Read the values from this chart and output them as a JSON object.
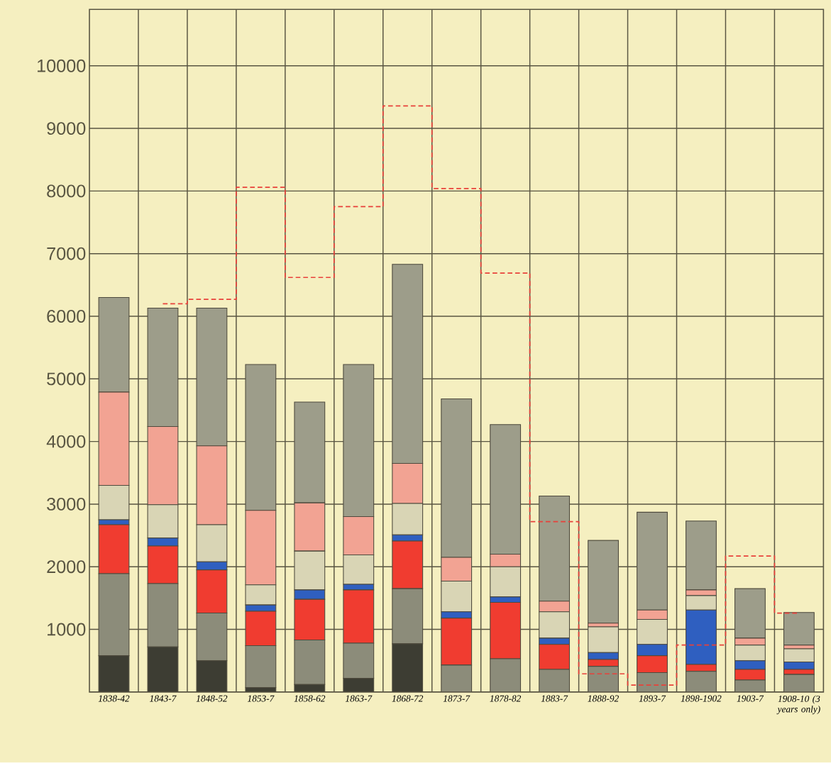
{
  "chart_data": {
    "type": "bar",
    "stacked": true,
    "grid": true,
    "categories": [
      "1838-42",
      "1843-7",
      "1848-52",
      "1853-7",
      "1858-62",
      "1863-7",
      "1868-72",
      "1873-7",
      "1878-82",
      "1883-7",
      "1888-92",
      "1893-7",
      "1898-1902",
      "1903-7",
      "1908-10 (3 years only)"
    ],
    "ylim": [
      0,
      10900
    ],
    "yticks": [
      1000,
      2000,
      3000,
      4000,
      5000,
      6000,
      7000,
      8000,
      9000,
      10000
    ],
    "series": [
      {
        "color": "#3d3d33",
        "values": [
          580,
          720,
          500,
          70,
          120,
          220,
          770,
          0,
          0,
          0,
          0,
          0,
          0,
          0,
          0
        ]
      },
      {
        "color": "#8c8c7a",
        "values": [
          1310,
          1010,
          760,
          670,
          710,
          560,
          880,
          430,
          530,
          360,
          410,
          310,
          330,
          190,
          280
        ]
      },
      {
        "color": "#f03c30",
        "values": [
          780,
          600,
          690,
          550,
          650,
          850,
          760,
          750,
          900,
          400,
          110,
          270,
          110,
          170,
          80
        ]
      },
      {
        "color": "#2f5fc0",
        "values": [
          80,
          130,
          130,
          100,
          150,
          90,
          100,
          100,
          90,
          100,
          110,
          180,
          870,
          140,
          120
        ]
      },
      {
        "color": "#d9d5b5",
        "values": [
          550,
          530,
          590,
          320,
          620,
          470,
          500,
          490,
          480,
          420,
          410,
          400,
          230,
          250,
          210
        ]
      },
      {
        "color": "#f2a393",
        "values": [
          1490,
          1250,
          1260,
          1190,
          770,
          610,
          640,
          380,
          200,
          170,
          60,
          150,
          90,
          110,
          60
        ]
      },
      {
        "color": "#9d9d8a",
        "values": [
          1510,
          1890,
          2200,
          2330,
          1610,
          2430,
          3180,
          2530,
          2070,
          1680,
          1320,
          1560,
          1100,
          790,
          520
        ]
      },
      {
        "type": "step",
        "color": "#e8413a",
        "line_style": "dashed",
        "values": [
          null,
          6200,
          6270,
          8060,
          6620,
          7750,
          9360,
          8040,
          6690,
          2720,
          290,
          110,
          750,
          2170,
          1260
        ]
      }
    ]
  }
}
